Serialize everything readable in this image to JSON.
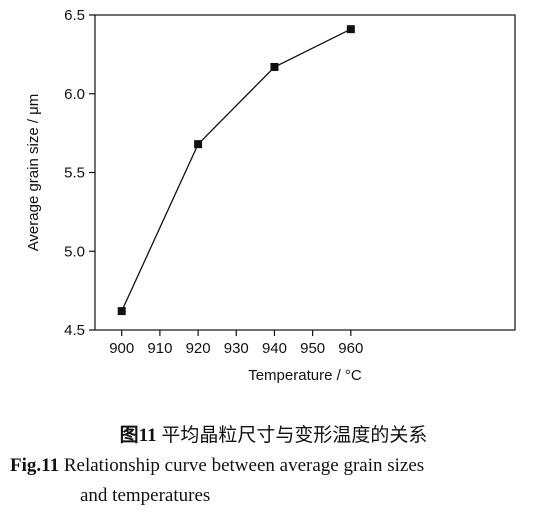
{
  "chart_data": {
    "type": "line",
    "x": [
      900,
      920,
      940,
      960
    ],
    "y": [
      4.62,
      5.68,
      6.17,
      6.41
    ],
    "xlabel": "Temperature / °C",
    "ylabel": "Average grain size / μm",
    "xlim": [
      893,
      1003
    ],
    "ylim": [
      4.5,
      6.5
    ],
    "xticks": [
      900,
      910,
      920,
      930,
      940,
      950,
      960
    ],
    "yticks": [
      4.5,
      5.0,
      5.5,
      6.0,
      6.5
    ],
    "xtick_labels": [
      "900",
      "910",
      "920",
      "930",
      "940",
      "950",
      "960"
    ],
    "ytick_labels": [
      "4.5",
      "5.0",
      "5.5",
      "6.0",
      "6.5"
    ],
    "marker": "square",
    "grid": false
  },
  "caption": {
    "cn_label": "图11",
    "cn_text": "平均晶粒尺寸与变形温度的关系",
    "en_label": "Fig.11",
    "en_line1": "Relationship curve between average grain sizes",
    "en_line2": "and temperatures"
  }
}
